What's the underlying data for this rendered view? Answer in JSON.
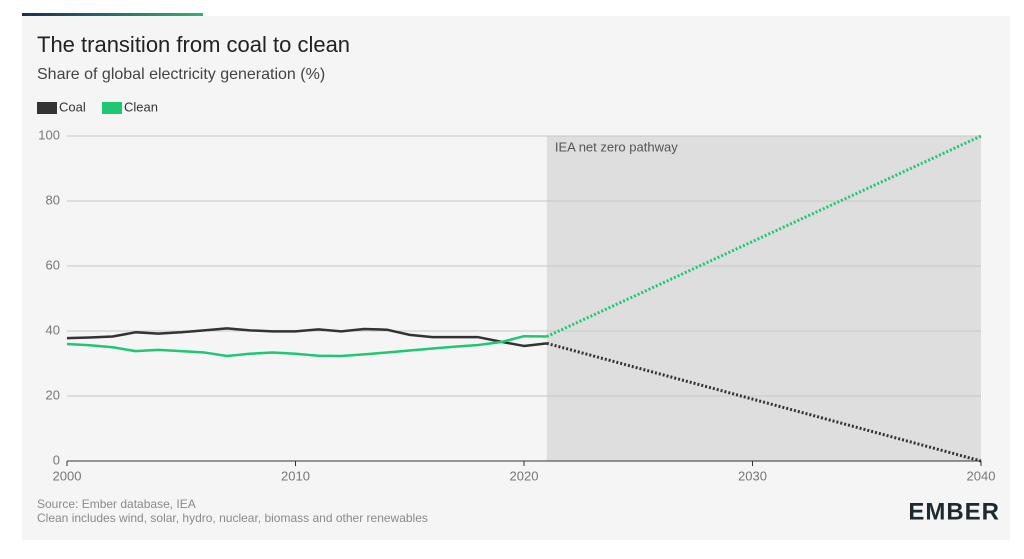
{
  "chart_data": {
    "type": "line",
    "title": "The transition from coal to clean",
    "subtitle": "Share of global electricity generation (%)",
    "x": [
      2000,
      2001,
      2002,
      2003,
      2004,
      2005,
      2006,
      2007,
      2008,
      2009,
      2010,
      2011,
      2012,
      2013,
      2014,
      2015,
      2016,
      2017,
      2018,
      2019,
      2020,
      2021
    ],
    "series": [
      {
        "name": "Coal",
        "color": "#333333",
        "values": [
          37.8,
          38.0,
          38.3,
          39.6,
          39.2,
          39.6,
          40.2,
          40.8,
          40.2,
          39.9,
          39.9,
          40.5,
          39.9,
          40.6,
          40.4,
          38.8,
          38.1,
          38.1,
          38.1,
          36.7,
          35.4,
          36.2
        ],
        "projection": {
          "x": [
            2021,
            2040
          ],
          "values": [
            36.2,
            0
          ]
        }
      },
      {
        "name": "Clean",
        "color": "#1ec873",
        "values": [
          36.0,
          35.6,
          35.0,
          33.8,
          34.2,
          33.8,
          33.4,
          32.3,
          33.0,
          33.4,
          33.0,
          32.4,
          32.3,
          32.8,
          33.4,
          34.0,
          34.6,
          35.2,
          35.7,
          36.6,
          38.4,
          38.3
        ],
        "projection": {
          "x": [
            2021,
            2040
          ],
          "values": [
            38.3,
            100
          ]
        }
      }
    ],
    "shaded_region": {
      "label": "IEA net zero pathway",
      "from": 2021,
      "to": 2040
    },
    "xlim": [
      2000,
      2040
    ],
    "xticks": [
      2000,
      2010,
      2020,
      2030,
      2040
    ],
    "ylim": [
      0,
      100
    ],
    "yticks": [
      0,
      20,
      40,
      60,
      80,
      100
    ],
    "grid": true,
    "source": "Source: Ember database, IEA",
    "note": "Clean includes wind, solar, hydro, nuclear, biomass and other renewables",
    "logo": "EMBER"
  }
}
